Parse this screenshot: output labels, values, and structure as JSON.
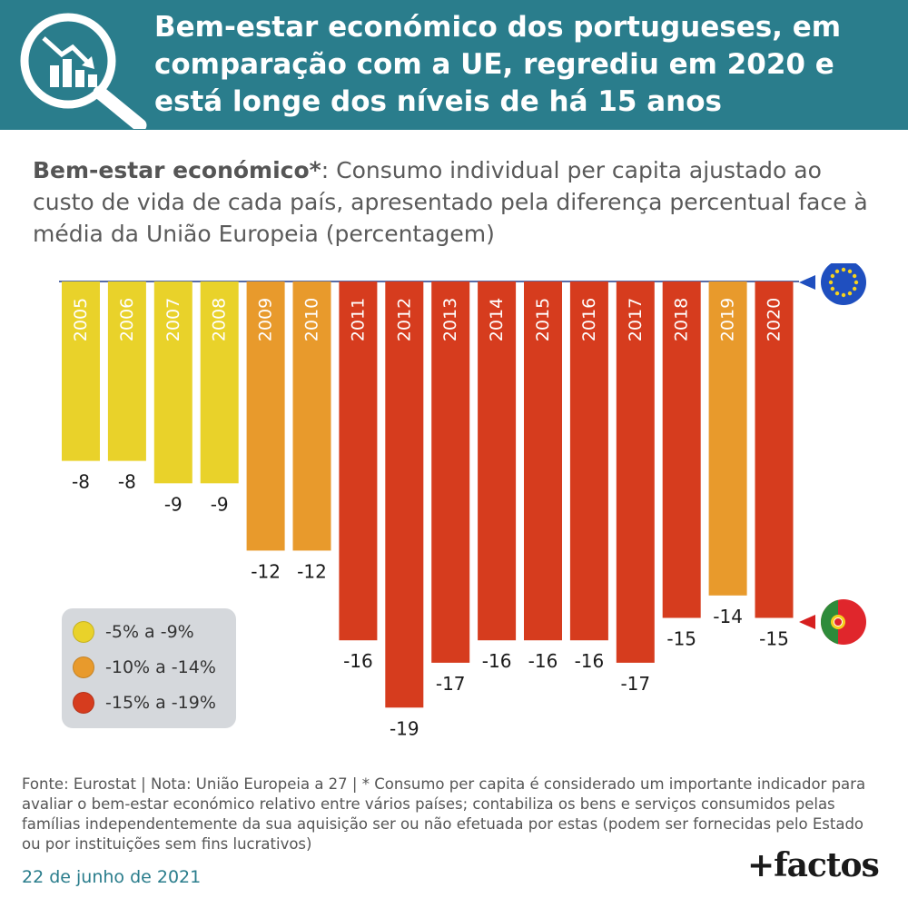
{
  "header": {
    "title": "Bem-estar económico dos portugueses, em comparação com a UE, regrediu em 2020 e está longe dos níveis de há 15 anos",
    "icon": "magnifier-declining-chart-icon"
  },
  "subtitle": {
    "bold": "Bem-estar económico*",
    "rest": ": Consumo individual per capita ajustado ao custo de vida de cada país, apresentado pela diferença percentual face à média da União Europeia (percentagem)"
  },
  "legend": {
    "items": [
      {
        "label": "-5% a -9%",
        "color": "#e9d22a"
      },
      {
        "label": "-10% a -14%",
        "color": "#e89a2c"
      },
      {
        "label": "-15% a -19%",
        "color": "#d63c1e"
      }
    ]
  },
  "markers": {
    "eu_icon": "eu-flag-icon",
    "pt_icon": "portugal-flag-icon"
  },
  "chart_data": {
    "type": "bar",
    "categories": [
      "2005",
      "2006",
      "2007",
      "2008",
      "2009",
      "2010",
      "2011",
      "2012",
      "2013",
      "2014",
      "2015",
      "2016",
      "2017",
      "2018",
      "2019",
      "2020"
    ],
    "values": [
      -8,
      -8,
      -9,
      -9,
      -12,
      -12,
      -16,
      -19,
      -17,
      -16,
      -16,
      -16,
      -17,
      -15,
      -14,
      -15
    ],
    "value_labels": [
      "-8",
      "-8",
      "-9",
      "-9",
      "-12",
      "-12",
      "-16",
      "-19",
      "-17",
      "-16",
      "-16",
      "-16",
      "-17",
      "-15",
      "-14",
      "-15"
    ],
    "colors": {
      "yellow": "#e9d22a",
      "orange": "#e89a2c",
      "red": "#d63c1e",
      "baseline": "#1f3a8a"
    },
    "ylim": [
      -19,
      0
    ],
    "legend_position": "bottom-left"
  },
  "footer": {
    "note": "Fonte: Eurostat | Nota: União Europeia a 27 | * Consumo per capita é considerado um importante indicador para avaliar o bem-estar económico relativo entre vários países; contabiliza os bens e serviços consumidos pelas famílias independentemente da sua aquisição ser ou não efetuada por estas (podem ser fornecidas pelo Estado ou por instituições sem fins lucrativos)",
    "date": "22 de junho de 2021",
    "brand": "+factos"
  }
}
